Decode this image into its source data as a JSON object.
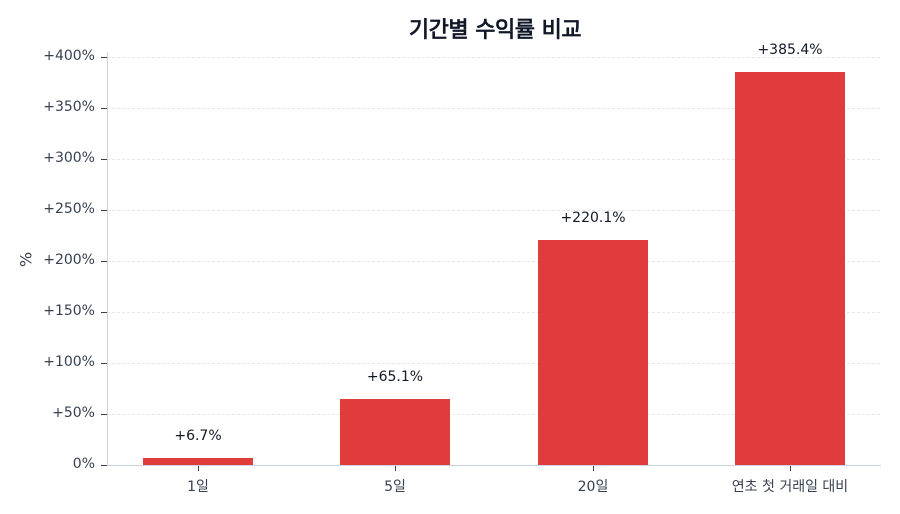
{
  "chart_data": {
    "type": "bar",
    "title": "기간별 수익률 비교",
    "xlabel": "",
    "ylabel": "%",
    "categories": [
      "1일",
      "5일",
      "20일",
      "연초 첫 거래일 대비"
    ],
    "values": [
      6.7,
      65.1,
      220.1,
      385.4
    ],
    "data_labels": [
      "+6.7%",
      "+65.1%",
      "+220.1%",
      "+385.4%"
    ],
    "ylim": [
      0,
      400
    ],
    "yticks": [
      0,
      50,
      100,
      150,
      200,
      250,
      300,
      350,
      400
    ],
    "ytick_labels": [
      "0%",
      "+50%",
      "+100%",
      "+150%",
      "+200%",
      "+250%",
      "+300%",
      "+350%",
      "+400%"
    ],
    "grid": "horizontal dashed",
    "legend": "none",
    "bar_color": "#e03c3c"
  }
}
